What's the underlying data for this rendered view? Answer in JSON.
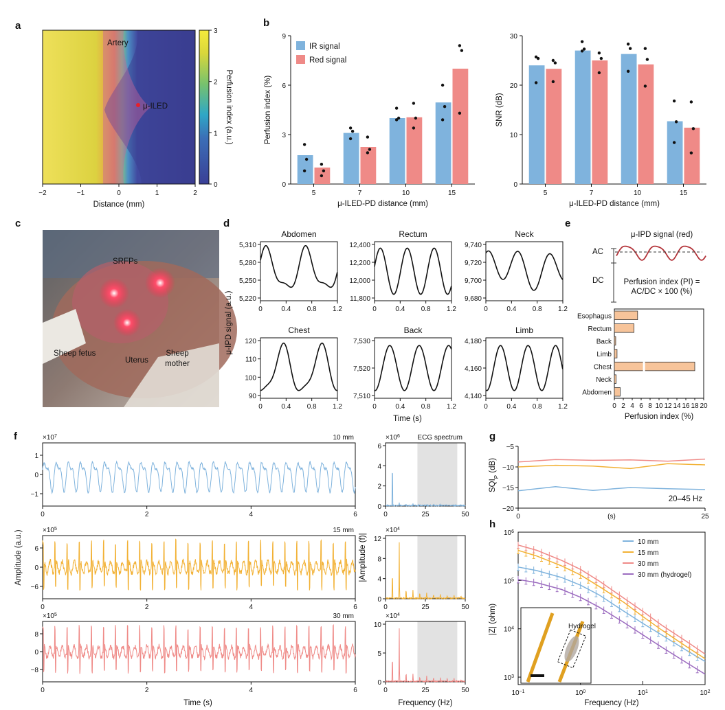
{
  "panels": {
    "a": "a",
    "b": "b",
    "c": "c",
    "d": "d",
    "e": "e",
    "f": "f",
    "g": "g",
    "h": "h"
  },
  "colors": {
    "ir": "#7fb3dd",
    "red": "#ef8a87",
    "orange": "#f2b134",
    "bar_e": "#f7c49a",
    "violet": "#9b6bbf",
    "dark_red": "#b3343a"
  },
  "panel_a": {
    "xlabel": "Distance (mm)",
    "xticks": [
      "−2",
      "−1",
      "0",
      "1",
      "2"
    ],
    "colorbar_label": "Perfusion index (a.u.)",
    "colorbar_ticks": [
      "0",
      "1",
      "2",
      "3"
    ],
    "labels": {
      "artery": "Artery",
      "led": "μ-ILED"
    }
  },
  "panel_c": {
    "labels": {
      "srfps": "SRFPs",
      "fetus": "Sheep fetus",
      "uterus": "Uterus",
      "mother1": "Sheep",
      "mother2": "mother"
    }
  },
  "panel_d": {
    "ylabel": "μ-IPD signal (a.u.)",
    "xlabel": "Time (s)",
    "xticks": [
      "0",
      "0.4",
      "0.8",
      "1.2"
    ],
    "plots": [
      {
        "title": "Abdomen",
        "yticks": [
          "5,310",
          "5,280",
          "5,250",
          "5,220"
        ]
      },
      {
        "title": "Rectum",
        "yticks": [
          "12,400",
          "12,200",
          "12,000",
          "11,800"
        ]
      },
      {
        "title": "Neck",
        "yticks": [
          "9,740",
          "9,720",
          "9,700",
          "9,680"
        ]
      },
      {
        "title": "Chest",
        "yticks": [
          "120",
          "110",
          "100",
          "90"
        ]
      },
      {
        "title": "Back",
        "yticks": [
          "7,530",
          "7,520",
          "7,510"
        ]
      },
      {
        "title": "Limb",
        "yticks": [
          "4,180",
          "4,160",
          "4,140"
        ]
      }
    ]
  },
  "panel_e": {
    "signal_title": "μ-IPD signal (red)",
    "ac": "AC",
    "dc": "DC",
    "formula1": "Perfusion index (PI) =",
    "formula2": "AC/DC × 100 (%)",
    "xlabel": "Perfusion index (%)",
    "xticks": [
      "0",
      "2",
      "4",
      "6",
      "8",
      "10",
      "12",
      "14",
      "16",
      "18",
      "20"
    ]
  },
  "panel_f": {
    "xlabel": "Time (s)",
    "ylabel": "Amplitude (a.u.)",
    "xticks": [
      "0",
      "2",
      "4",
      "6"
    ],
    "rows": [
      {
        "dist": "10 mm",
        "exp": "×10",
        "expsup": "7",
        "yticks": [
          "1",
          "0",
          "−1"
        ]
      },
      {
        "dist": "15 mm",
        "exp": "×10",
        "expsup": "5",
        "yticks": [
          "6",
          "0",
          "−6"
        ]
      },
      {
        "dist": "30 mm",
        "exp": "×10",
        "expsup": "5",
        "yticks": [
          "8",
          "0",
          "−8"
        ]
      }
    ],
    "spectrum": {
      "title": "ECG spectrum",
      "xlabel": "Frequency (Hz)",
      "ylabel": "|Amplitude (f)|",
      "xticks": [
        "0",
        "25",
        "50"
      ],
      "rows": [
        {
          "exp": "×10",
          "expsup": "6",
          "yticks": [
            "6",
            "4",
            "2",
            "0"
          ]
        },
        {
          "exp": "×10",
          "expsup": "4",
          "yticks": [
            "12",
            "8",
            "4",
            "0"
          ]
        },
        {
          "exp": "×10",
          "expsup": "4",
          "yticks": [
            "10",
            "5",
            "0"
          ]
        }
      ]
    }
  },
  "panel_g": {
    "ylabel_pre": "SQI",
    "ylabel_sub": "P",
    "ylabel_post": " (dB)",
    "xlabel": "(s)",
    "band": "20–45 Hz",
    "yticks": [
      "−5",
      "−10",
      "−15",
      "−20"
    ],
    "xticks": [
      "0",
      "25"
    ]
  },
  "panel_h": {
    "xlabel": "Frequency (Hz)",
    "ylabel": "|Z| (ohm)",
    "inset_label": "Hydrogel",
    "yticks": [
      {
        "b": "10",
        "e": "6"
      },
      {
        "b": "10",
        "e": "5"
      },
      {
        "b": "10",
        "e": "4"
      },
      {
        "b": "10",
        "e": "3"
      }
    ],
    "xticks": [
      {
        "b": "10",
        "e": "−1"
      },
      {
        "b": "10",
        "e": "0"
      },
      {
        "b": "10",
        "e": "1"
      },
      {
        "b": "10",
        "e": "2"
      }
    ]
  },
  "chart_data": [
    {
      "id": "b-left",
      "type": "bar",
      "categories": [
        "5",
        "7",
        "10",
        "15"
      ],
      "xlabel": "μ-ILED-PD distance (mm)",
      "ylabel": "Perfusion index (%)",
      "ylim": [
        0,
        9
      ],
      "yticks": [
        0,
        3,
        6,
        9
      ],
      "legend": "top-left",
      "series": [
        {
          "name": "IR signal",
          "color": "#7fb3dd",
          "values": [
            1.75,
            3.1,
            4.0,
            4.95
          ],
          "points": [
            [
              2.4,
              1.5,
              0.8
            ],
            [
              3.4,
              3.2,
              2.75
            ],
            [
              4.6,
              4.0,
              3.9
            ],
            [
              6.0,
              4.7,
              3.9
            ]
          ]
        },
        {
          "name": "Red signal",
          "color": "#ef8a87",
          "values": [
            1.0,
            2.25,
            4.05,
            7.0
          ],
          "points": [
            [
              1.2,
              0.8,
              0.5
            ],
            [
              2.85,
              2.1,
              1.9
            ],
            [
              4.9,
              4.0,
              3.4
            ],
            [
              8.4,
              8.1,
              4.3
            ]
          ]
        }
      ]
    },
    {
      "id": "b-right",
      "type": "bar",
      "categories": [
        "5",
        "7",
        "10",
        "15"
      ],
      "xlabel": "μ-ILED-PD distance (mm)",
      "ylabel": "SNR (dB)",
      "ylim": [
        0,
        30
      ],
      "yticks": [
        0,
        10,
        20,
        30
      ],
      "series": [
        {
          "name": "IR signal",
          "color": "#7fb3dd",
          "values": [
            24,
            27,
            26.3,
            12.7
          ],
          "points": [
            [
              25.7,
              25.4,
              20.5
            ],
            [
              28.8,
              27.3,
              26.9
            ],
            [
              28.3,
              27.4,
              22.8
            ],
            [
              16.8,
              12.6,
              8.4
            ]
          ]
        },
        {
          "name": "Red signal",
          "color": "#ef8a87",
          "values": [
            23.3,
            25,
            24.2,
            11.4
          ],
          "points": [
            [
              25.0,
              24.5,
              20.7
            ],
            [
              26.5,
              25.4,
              22.5
            ],
            [
              27.4,
              25.2,
              19.8
            ],
            [
              16.6,
              11.2,
              6.3
            ]
          ]
        }
      ]
    },
    {
      "id": "e-bars",
      "type": "bar",
      "categories": [
        "Esophagus",
        "Rectum",
        "Back",
        "Limb",
        "Chest",
        "Neck",
        "Abdomen"
      ],
      "values": [
        5.2,
        4.4,
        0.3,
        0.6,
        18.0,
        0.4,
        1.3
      ],
      "xlabel": "Perfusion index (%)",
      "xlim": [
        0,
        20
      ]
    },
    {
      "id": "g-sqi",
      "type": "line",
      "x": [
        0,
        5,
        10,
        15,
        20,
        25
      ],
      "ylim": [
        -20,
        -5
      ],
      "xlim": [
        0,
        25
      ],
      "series": [
        {
          "color": "#ef8a87",
          "values": [
            -8.8,
            -8.2,
            -8.4,
            -8.3,
            -8.6,
            -8.1
          ]
        },
        {
          "color": "#f2b134",
          "values": [
            -10.0,
            -9.6,
            -9.8,
            -10.4,
            -9.2,
            -9.5
          ]
        },
        {
          "color": "#7fb3dd",
          "values": [
            -15.8,
            -14.8,
            -15.7,
            -15.0,
            -15.3,
            -15.5
          ]
        }
      ]
    },
    {
      "id": "h-impedance",
      "type": "line",
      "xscale": "log",
      "yscale": "log",
      "xlim": [
        0.1,
        100
      ],
      "ylim": [
        700,
        1000000
      ],
      "legend": "top-right",
      "x": [
        0.1,
        0.2,
        0.5,
        1,
        2,
        5,
        10,
        20,
        50,
        100
      ],
      "series": [
        {
          "name": "10 mm",
          "color": "#7fb3dd",
          "values": [
            190000,
            160000,
            115000,
            80000,
            50000,
            23000,
            13000,
            7500,
            3600,
            2100
          ]
        },
        {
          "name": "15 mm",
          "color": "#f2b134",
          "values": [
            420000,
            320000,
            200000,
            130000,
            75000,
            35000,
            18000,
            9500,
            4300,
            2400
          ]
        },
        {
          "name": "30 mm",
          "color": "#ef8a87",
          "values": [
            540000,
            420000,
            260000,
            170000,
            97000,
            43000,
            23000,
            12000,
            5500,
            3000
          ]
        },
        {
          "name": "30 mm (hydrogel)",
          "color": "#9b6bbf",
          "values": [
            105000,
            90000,
            65000,
            45000,
            28000,
            13500,
            7500,
            4200,
            2000,
            1150
          ]
        }
      ]
    }
  ]
}
